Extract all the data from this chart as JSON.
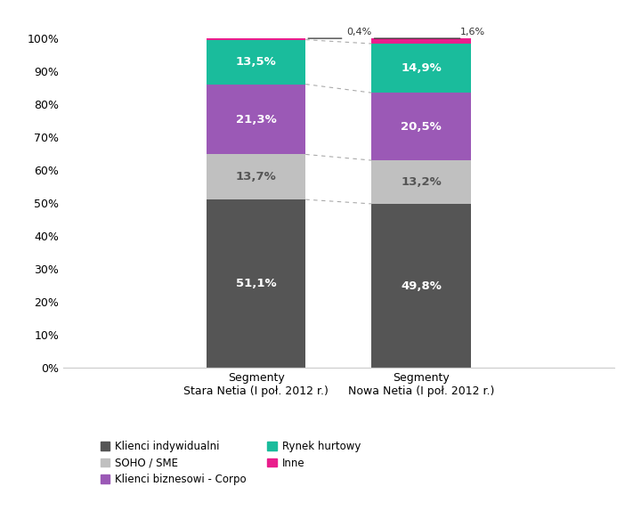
{
  "bars": {
    "cat1": {
      "Klienci indywidualni": 51.1,
      "SOHO / SME": 13.7,
      "Klienci biznesowi - Corpo": 21.3,
      "Rynek hurtowy": 13.5,
      "Inne": 0.4
    },
    "cat2": {
      "Klienci indywidualni": 49.8,
      "SOHO / SME": 13.2,
      "Klienci biznesowi - Corpo": 20.5,
      "Rynek hurtowy": 14.9,
      "Inne": 1.6
    }
  },
  "xtick_labels": [
    "Segmenty\nStara Netia (I poł. 2012 r.)",
    "Segmenty\nNowa Netia (I poł. 2012 r.)"
  ],
  "segments": [
    "Klienci indywidualni",
    "SOHO / SME",
    "Klienci biznesowi - Corpo",
    "Rynek hurtowy",
    "Inne"
  ],
  "colors": {
    "Klienci indywidualni": "#555555",
    "SOHO / SME": "#c0c0c0",
    "Klienci biznesowi - Corpo": "#9b59b6",
    "Rynek hurtowy": "#1abc9c",
    "Inne": "#e91e8c"
  },
  "text_colors": {
    "Klienci indywidualni": "#ffffff",
    "SOHO / SME": "#555555",
    "Klienci biznesowi - Corpo": "#ffffff",
    "Rynek hurtowy": "#ffffff",
    "Inne": "#ffffff"
  },
  "yticks": [
    0,
    10,
    20,
    30,
    40,
    50,
    60,
    70,
    80,
    90,
    100
  ],
  "ytick_labels": [
    "0%",
    "10%",
    "20%",
    "30%",
    "40%",
    "50%",
    "60%",
    "70%",
    "80%",
    "90%",
    "100%"
  ],
  "background_color": "#ffffff",
  "bar_width": 0.18,
  "x_positions": [
    0.35,
    0.65
  ],
  "xlim": [
    0.0,
    1.0
  ],
  "ylim": [
    0,
    107
  ],
  "inne_labels": [
    "0,4%",
    "1,6%"
  ],
  "legend_col1": [
    {
      "label": "Klienci indywidualni",
      "color": "#555555"
    },
    {
      "label": "Klienci biznesowi - Corpo",
      "color": "#9b59b6"
    },
    {
      "label": "Inne",
      "color": "#e91e8c"
    }
  ],
  "legend_col2": [
    {
      "label": "SOHO / SME",
      "color": "#c0c0c0"
    },
    {
      "label": "Rynek hurtowy",
      "color": "#1abc9c"
    }
  ]
}
